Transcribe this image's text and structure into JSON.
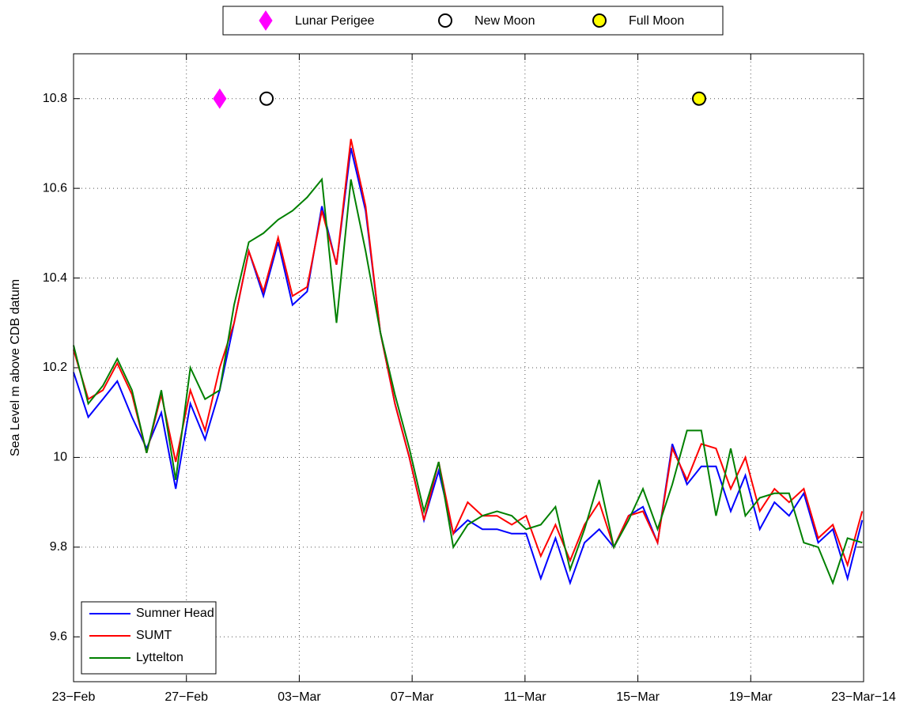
{
  "chart_data": {
    "type": "line",
    "y_label": "Sea Level m above CDB datum",
    "xlim": [
      0,
      28
    ],
    "xticks": [
      {
        "value": 0,
        "label": "23−Feb"
      },
      {
        "value": 4,
        "label": "27−Feb"
      },
      {
        "value": 8,
        "label": "03−Mar"
      },
      {
        "value": 12,
        "label": "07−Mar"
      },
      {
        "value": 16,
        "label": "11−Mar"
      },
      {
        "value": 20,
        "label": "15−Mar"
      },
      {
        "value": 24,
        "label": "19−Mar"
      },
      {
        "value": 28,
        "label": "23−Mar−14"
      }
    ],
    "ylim": [
      9.5,
      10.9
    ],
    "yticks": [
      9.6,
      9.8,
      10,
      10.2,
      10.4,
      10.6,
      10.8
    ],
    "grid": true,
    "legend": "lower left",
    "x": [
      0,
      0.52,
      1.04,
      1.55,
      2.07,
      2.59,
      3.11,
      3.62,
      4.14,
      4.66,
      5.18,
      5.69,
      6.21,
      6.73,
      7.25,
      7.76,
      8.28,
      8.8,
      9.32,
      9.83,
      10.35,
      10.87,
      11.39,
      11.9,
      12.42,
      12.94,
      13.46,
      13.97,
      14.49,
      15.01,
      15.53,
      16.04,
      16.56,
      17.08,
      17.6,
      18.11,
      18.63,
      19.15,
      19.67,
      20.18,
      20.7,
      21.22,
      21.74,
      22.25,
      22.77,
      23.29,
      23.81,
      24.32,
      24.84,
      25.36,
      25.88,
      26.39,
      26.91,
      27.43,
      27.95
    ],
    "series": [
      {
        "name": "Sumner Head",
        "color": "#0000ff",
        "values": [
          10.19,
          10.09,
          10.13,
          10.17,
          10.09,
          10.02,
          10.1,
          9.93,
          10.12,
          10.04,
          10.15,
          10.3,
          10.46,
          10.36,
          10.48,
          10.34,
          10.37,
          10.56,
          10.43,
          10.69,
          10.55,
          10.28,
          10.12,
          10.0,
          9.86,
          9.97,
          9.83,
          9.86,
          9.84,
          9.84,
          9.83,
          9.83,
          9.73,
          9.82,
          9.72,
          9.81,
          9.84,
          9.8,
          9.87,
          9.89,
          9.81,
          10.03,
          9.94,
          9.98,
          9.98,
          9.88,
          9.96,
          9.84,
          9.9,
          9.87,
          9.92,
          9.81,
          9.84,
          9.73,
          9.86
        ]
      },
      {
        "name": "SUMT",
        "color": "#ff0000",
        "values": [
          10.24,
          10.13,
          10.15,
          10.21,
          10.14,
          10.01,
          10.14,
          9.99,
          10.15,
          10.06,
          10.2,
          10.3,
          10.46,
          10.37,
          10.49,
          10.36,
          10.38,
          10.55,
          10.43,
          10.71,
          10.56,
          10.28,
          10.12,
          10.0,
          9.86,
          9.99,
          9.83,
          9.9,
          9.87,
          9.87,
          9.85,
          9.87,
          9.78,
          9.85,
          9.77,
          9.85,
          9.9,
          9.8,
          9.87,
          9.88,
          9.81,
          10.02,
          9.95,
          10.03,
          10.02,
          9.93,
          10.0,
          9.88,
          9.93,
          9.9,
          9.93,
          9.82,
          9.85,
          9.76,
          9.88
        ]
      },
      {
        "name": "Lyttelton",
        "color": "#008000",
        "values": [
          10.25,
          10.12,
          10.16,
          10.22,
          10.15,
          10.01,
          10.15,
          9.95,
          10.2,
          10.13,
          10.15,
          10.34,
          10.48,
          10.5,
          10.53,
          10.55,
          10.58,
          10.62,
          10.3,
          10.62,
          10.46,
          10.28,
          10.14,
          10.02,
          9.88,
          9.99,
          9.8,
          9.85,
          9.87,
          9.88,
          9.87,
          9.84,
          9.85,
          9.89,
          9.75,
          9.84,
          9.95,
          9.8,
          9.86,
          9.93,
          9.84,
          9.94,
          10.06,
          10.06,
          9.87,
          10.02,
          9.87,
          9.91,
          9.92,
          9.92,
          9.81,
          9.8,
          9.72,
          9.82,
          9.81
        ]
      }
    ],
    "markers": [
      {
        "name": "Lunar Perigee",
        "shape": "diamond",
        "color": "#ff00ff",
        "x": 5.18,
        "y": 10.8
      },
      {
        "name": "New Moon",
        "shape": "circle",
        "color": "#ffffff",
        "x": 6.84,
        "y": 10.8
      },
      {
        "name": "Full Moon",
        "shape": "circle",
        "color": "#ffff00",
        "x": 22.17,
        "y": 10.8
      }
    ]
  }
}
